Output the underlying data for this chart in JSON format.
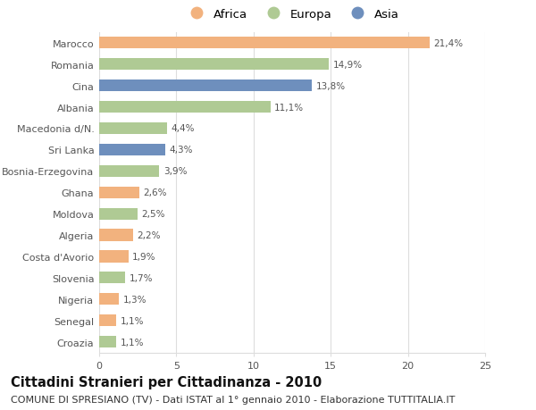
{
  "countries": [
    "Marocco",
    "Romania",
    "Cina",
    "Albania",
    "Macedonia d/N.",
    "Sri Lanka",
    "Bosnia-Erzegovina",
    "Ghana",
    "Moldova",
    "Algeria",
    "Costa d'Avorio",
    "Slovenia",
    "Nigeria",
    "Senegal",
    "Croazia"
  ],
  "values": [
    21.4,
    14.9,
    13.8,
    11.1,
    4.4,
    4.3,
    3.9,
    2.6,
    2.5,
    2.2,
    1.9,
    1.7,
    1.3,
    1.1,
    1.1
  ],
  "labels": [
    "21,4%",
    "14,9%",
    "13,8%",
    "11,1%",
    "4,4%",
    "4,3%",
    "3,9%",
    "2,6%",
    "2,5%",
    "2,2%",
    "1,9%",
    "1,7%",
    "1,3%",
    "1,1%",
    "1,1%"
  ],
  "continents": [
    "Africa",
    "Europa",
    "Asia",
    "Europa",
    "Europa",
    "Asia",
    "Europa",
    "Africa",
    "Europa",
    "Africa",
    "Africa",
    "Europa",
    "Africa",
    "Africa",
    "Europa"
  ],
  "colors": {
    "Africa": "#F2B27E",
    "Europa": "#AFCA94",
    "Asia": "#6E8FBD"
  },
  "xlim": [
    0,
    25
  ],
  "xticks": [
    0,
    5,
    10,
    15,
    20,
    25
  ],
  "title": "Cittadini Stranieri per Cittadinanza - 2010",
  "subtitle": "COMUNE DI SPRESIANO (TV) - Dati ISTAT al 1° gennaio 2010 - Elaborazione TUTTITALIA.IT",
  "background_color": "#ffffff",
  "grid_color": "#dddddd",
  "bar_height": 0.55,
  "title_fontsize": 10.5,
  "subtitle_fontsize": 8,
  "label_fontsize": 7.5,
  "tick_fontsize": 8,
  "legend_fontsize": 9.5
}
